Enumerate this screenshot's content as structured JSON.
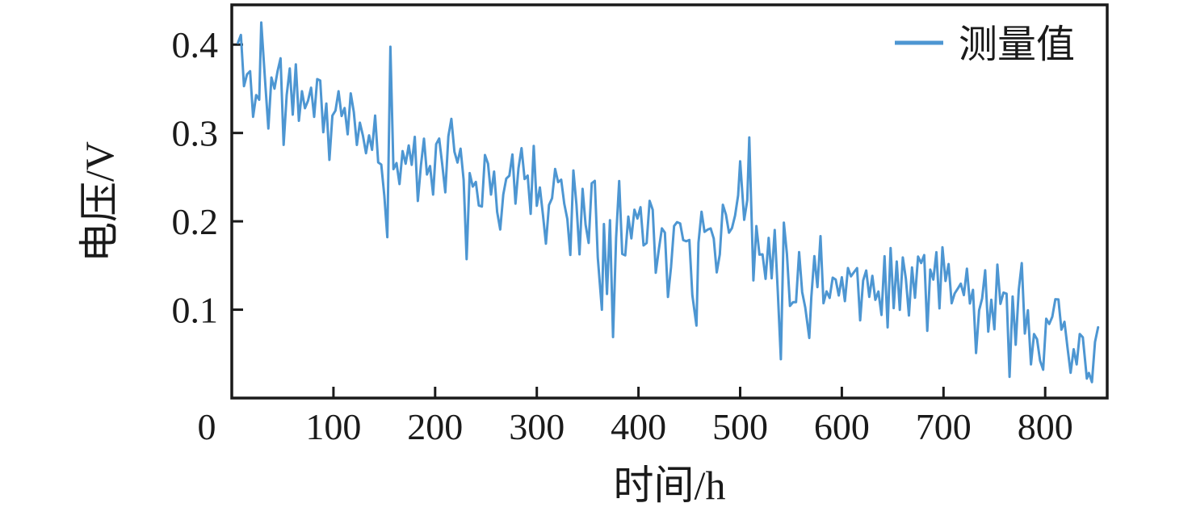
{
  "figure": {
    "background": "#ffffff",
    "axis_color": "#1a1a1a",
    "text_color": "#1a1a1a"
  },
  "chart_data": {
    "type": "line",
    "title": "",
    "xlabel": "时间/h",
    "ylabel": "电压/V",
    "grid": false,
    "xlim": [
      0,
      861
    ],
    "ylim": [
      0,
      0.445
    ],
    "xtick_values": [
      0,
      100,
      200,
      300,
      400,
      500,
      600,
      700,
      800
    ],
    "xtick_labels": [
      "0",
      "100",
      "200",
      "300",
      "400",
      "500",
      "600",
      "700",
      "800"
    ],
    "ytick_values": [
      0.1,
      0.2,
      0.3,
      0.4
    ],
    "ytick_labels": [
      "0.1",
      "0.2",
      "0.3",
      "0.4"
    ],
    "legend": {
      "position": "upper-right",
      "frame": false,
      "entries": [
        {
          "label": "测量值",
          "color": "#4D96D2"
        }
      ]
    },
    "series": [
      {
        "name": "测量值",
        "color": "#4D96D2",
        "line_width": 3,
        "x_start": 6,
        "x_end": 852,
        "x_step": 3,
        "trend_anchors": [
          [
            6,
            0.39
          ],
          [
            20,
            0.36
          ],
          [
            40,
            0.345
          ],
          [
            60,
            0.34
          ],
          [
            80,
            0.335
          ],
          [
            100,
            0.315
          ],
          [
            120,
            0.305
          ],
          [
            140,
            0.295
          ],
          [
            155,
            0.275
          ],
          [
            170,
            0.27
          ],
          [
            190,
            0.265
          ],
          [
            210,
            0.265
          ],
          [
            230,
            0.255
          ],
          [
            250,
            0.245
          ],
          [
            270,
            0.235
          ],
          [
            290,
            0.23
          ],
          [
            310,
            0.225
          ],
          [
            330,
            0.22
          ],
          [
            350,
            0.215
          ],
          [
            370,
            0.2
          ],
          [
            390,
            0.195
          ],
          [
            410,
            0.19
          ],
          [
            430,
            0.19
          ],
          [
            450,
            0.19
          ],
          [
            470,
            0.18
          ],
          [
            487,
            0.2
          ],
          [
            500,
            0.21
          ],
          [
            512,
            0.19
          ],
          [
            525,
            0.17
          ],
          [
            540,
            0.15
          ],
          [
            555,
            0.145
          ],
          [
            570,
            0.135
          ],
          [
            585,
            0.14
          ],
          [
            600,
            0.135
          ],
          [
            620,
            0.13
          ],
          [
            640,
            0.13
          ],
          [
            660,
            0.13
          ],
          [
            680,
            0.125
          ],
          [
            695,
            0.12
          ],
          [
            710,
            0.11
          ],
          [
            730,
            0.105
          ],
          [
            750,
            0.1
          ],
          [
            770,
            0.095
          ],
          [
            790,
            0.088
          ],
          [
            810,
            0.078
          ],
          [
            825,
            0.072
          ],
          [
            840,
            0.065
          ],
          [
            852,
            0.06
          ]
        ],
        "notable_points": [
          {
            "x": 6,
            "y": 0.402
          },
          {
            "x": 29,
            "y": 0.425
          },
          {
            "x": 153,
            "y": 0.182
          },
          {
            "x": 364,
            "y": 0.1
          },
          {
            "x": 457,
            "y": 0.082
          },
          {
            "x": 500,
            "y": 0.268
          },
          {
            "x": 509,
            "y": 0.295
          },
          {
            "x": 568,
            "y": 0.068
          },
          {
            "x": 693,
            "y": 0.165
          },
          {
            "x": 841,
            "y": 0.022
          },
          {
            "x": 852,
            "y": 0.08
          }
        ],
        "noise_amp": 0.062,
        "noise_sd": 0.025,
        "outlier_prob": 0.1,
        "outlier_scale": 2.2,
        "noise_seed": 11,
        "y_clip": [
          0.018,
          0.428
        ]
      }
    ]
  }
}
